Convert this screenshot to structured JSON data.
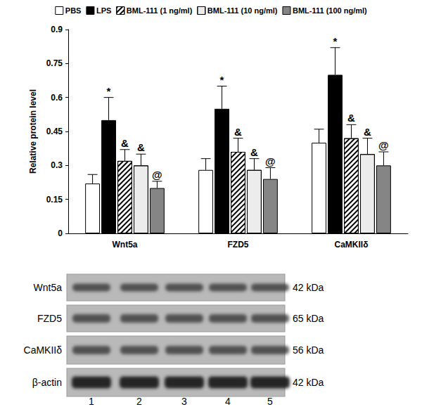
{
  "chart_data": {
    "type": "bar",
    "y_label": "Relative protein level",
    "categories": [
      "Wnt5a",
      "FZD5",
      "CaMKIIδ"
    ],
    "series": [
      {
        "name": "PBS",
        "color": "#ffffff",
        "values": [
          0.22,
          0.28,
          0.4
        ],
        "errors": [
          0.04,
          0.05,
          0.06
        ],
        "annotations": [
          null,
          null,
          null
        ]
      },
      {
        "name": "LPS",
        "color": "#000000",
        "values": [
          0.5,
          0.55,
          0.7
        ],
        "errors": [
          0.1,
          0.1,
          0.12
        ],
        "annotations": [
          "*",
          "*",
          "*"
        ]
      },
      {
        "name": "BML-111 (1 ng/ml)",
        "color": "#ffffff",
        "values": [
          0.32,
          0.36,
          0.42
        ],
        "errors": [
          0.05,
          0.06,
          0.06
        ],
        "annotations": [
          "&",
          "&",
          "&"
        ]
      },
      {
        "name": "BML-111 (10 ng/ml)",
        "color": "#ececec",
        "values": [
          0.3,
          0.28,
          0.35
        ],
        "errors": [
          0.05,
          0.05,
          0.07
        ],
        "annotations": [
          "&",
          "&",
          "&"
        ]
      },
      {
        "name": "BML-111 (100 ng/ml)",
        "color": "#858585",
        "values": [
          0.2,
          0.24,
          0.3
        ],
        "errors": [
          0.03,
          0.05,
          0.06
        ],
        "annotations": [
          "@",
          "@",
          "@"
        ]
      }
    ],
    "ylim": [
      0,
      0.9
    ],
    "yticks": [
      0,
      0.15,
      0.3,
      0.45,
      0.6,
      0.75,
      0.9
    ],
    "grid": false,
    "legend": "top"
  },
  "blot": {
    "rows": [
      {
        "label": "Wnt5a",
        "size": "42 kDa"
      },
      {
        "label": "FZD5",
        "size": "65 kDa"
      },
      {
        "label": "CaMKIIδ",
        "size": "56 kDa"
      },
      {
        "label": "β-actin",
        "size": "42 kDa"
      }
    ],
    "lanes": [
      "1",
      "2",
      "3",
      "4",
      "5"
    ]
  }
}
